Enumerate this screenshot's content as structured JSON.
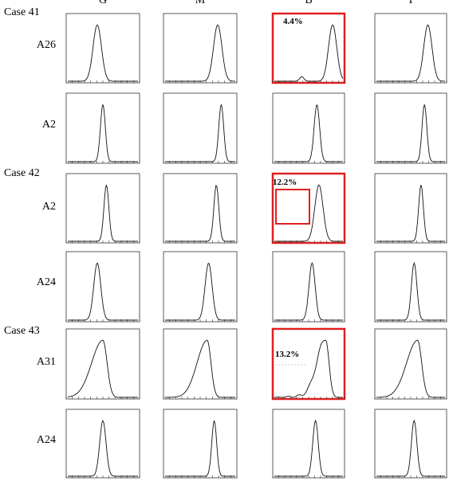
{
  "columns": [
    "G",
    "M",
    "B",
    "T"
  ],
  "rows": [
    {
      "case": "Case 41",
      "label": "A26"
    },
    {
      "label": "A2"
    },
    {
      "case": "Case 42",
      "label": "A2"
    },
    {
      "label": "A24"
    },
    {
      "case": "Case 43",
      "label": "A31"
    },
    {
      "label": "A24"
    }
  ],
  "annotations": [
    "4.4%",
    "12.2%",
    "13.2%"
  ]
}
